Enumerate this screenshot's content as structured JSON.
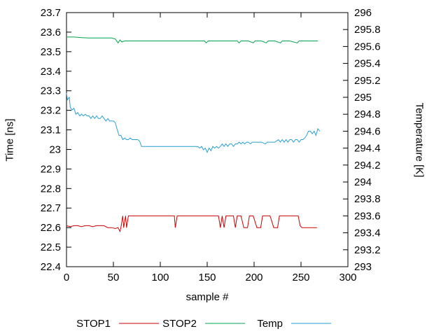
{
  "chart_data": {
    "type": "line",
    "title": "",
    "xlabel": "sample #",
    "ylabel": "Time [ns]",
    "y2label": "Temperature [K]",
    "grid": false,
    "legend_position": "bottom",
    "xlim": [
      0,
      300
    ],
    "ylim": [
      22.4,
      23.7
    ],
    "y2lim": [
      293,
      296
    ],
    "x_ticks": [
      "0",
      "50",
      "100",
      "150",
      "200",
      "250",
      "300"
    ],
    "y_ticks": [
      "22.4",
      "22.5",
      "22.6",
      "22.7",
      "22.8",
      "22.9",
      "23",
      "23.1",
      "23.2",
      "23.3",
      "23.4",
      "23.5",
      "23.6",
      "23.7"
    ],
    "y2_ticks": [
      "293",
      "293.2",
      "293.4",
      "293.6",
      "293.8",
      "294",
      "294.2",
      "294.4",
      "294.6",
      "294.8",
      "295",
      "295.2",
      "295.4",
      "295.6",
      "295.8",
      "296"
    ],
    "series": [
      {
        "name": "STOP1",
        "color": "#cc0000",
        "axis": "left",
        "points": [
          [
            0,
            22.61
          ],
          [
            4,
            22.605
          ],
          [
            8,
            22.61
          ],
          [
            12,
            22.61
          ],
          [
            16,
            22.605
          ],
          [
            20,
            22.61
          ],
          [
            24,
            22.61
          ],
          [
            28,
            22.605
          ],
          [
            32,
            22.61
          ],
          [
            36,
            22.61
          ],
          [
            40,
            22.61
          ],
          [
            44,
            22.6
          ],
          [
            48,
            22.6
          ],
          [
            52,
            22.595
          ],
          [
            55,
            22.6
          ],
          [
            57,
            22.58
          ],
          [
            58,
            22.6
          ],
          [
            60,
            22.66
          ],
          [
            61,
            22.6
          ],
          [
            63,
            22.66
          ],
          [
            64,
            22.6
          ],
          [
            66,
            22.66
          ],
          [
            70,
            22.66
          ],
          [
            75,
            22.66
          ],
          [
            80,
            22.66
          ],
          [
            85,
            22.66
          ],
          [
            90,
            22.66
          ],
          [
            95,
            22.66
          ],
          [
            100,
            22.66
          ],
          [
            105,
            22.66
          ],
          [
            110,
            22.66
          ],
          [
            115,
            22.66
          ],
          [
            116,
            22.6
          ],
          [
            118,
            22.66
          ],
          [
            122,
            22.66
          ],
          [
            128,
            22.66
          ],
          [
            134,
            22.66
          ],
          [
            140,
            22.66
          ],
          [
            146,
            22.66
          ],
          [
            152,
            22.66
          ],
          [
            158,
            22.66
          ],
          [
            162,
            22.66
          ],
          [
            164,
            22.6
          ],
          [
            166,
            22.66
          ],
          [
            168,
            22.6
          ],
          [
            170,
            22.66
          ],
          [
            174,
            22.66
          ],
          [
            178,
            22.66
          ],
          [
            180,
            22.6
          ],
          [
            182,
            22.66
          ],
          [
            186,
            22.66
          ],
          [
            189,
            22.6
          ],
          [
            193,
            22.6
          ],
          [
            195,
            22.66
          ],
          [
            199,
            22.66
          ],
          [
            203,
            22.6
          ],
          [
            207,
            22.6
          ],
          [
            209,
            22.66
          ],
          [
            213,
            22.66
          ],
          [
            217,
            22.66
          ],
          [
            221,
            22.6
          ],
          [
            225,
            22.6
          ],
          [
            227,
            22.66
          ],
          [
            231,
            22.66
          ],
          [
            235,
            22.66
          ],
          [
            239,
            22.66
          ],
          [
            243,
            22.66
          ],
          [
            247,
            22.66
          ],
          [
            249,
            22.61
          ],
          [
            251,
            22.6
          ],
          [
            255,
            22.6
          ],
          [
            259,
            22.6
          ],
          [
            263,
            22.6
          ],
          [
            267,
            22.6
          ]
        ]
      },
      {
        "name": "STOP2",
        "color": "#00a550",
        "axis": "left",
        "points": [
          [
            0,
            23.575
          ],
          [
            8,
            23.575
          ],
          [
            16,
            23.572
          ],
          [
            24,
            23.57
          ],
          [
            32,
            23.57
          ],
          [
            40,
            23.57
          ],
          [
            48,
            23.57
          ],
          [
            52,
            23.565
          ],
          [
            55,
            23.545
          ],
          [
            57,
            23.56
          ],
          [
            59,
            23.55
          ],
          [
            62,
            23.555
          ],
          [
            68,
            23.555
          ],
          [
            76,
            23.555
          ],
          [
            84,
            23.555
          ],
          [
            92,
            23.555
          ],
          [
            100,
            23.555
          ],
          [
            108,
            23.555
          ],
          [
            116,
            23.555
          ],
          [
            124,
            23.555
          ],
          [
            132,
            23.555
          ],
          [
            140,
            23.555
          ],
          [
            147,
            23.555
          ],
          [
            149,
            23.545
          ],
          [
            151,
            23.555
          ],
          [
            158,
            23.555
          ],
          [
            166,
            23.555
          ],
          [
            174,
            23.555
          ],
          [
            182,
            23.555
          ],
          [
            184,
            23.545
          ],
          [
            186,
            23.555
          ],
          [
            194,
            23.555
          ],
          [
            199,
            23.545
          ],
          [
            201,
            23.555
          ],
          [
            208,
            23.555
          ],
          [
            213,
            23.545
          ],
          [
            215,
            23.555
          ],
          [
            222,
            23.555
          ],
          [
            228,
            23.545
          ],
          [
            230,
            23.555
          ],
          [
            238,
            23.555
          ],
          [
            246,
            23.545
          ],
          [
            248,
            23.555
          ],
          [
            256,
            23.555
          ],
          [
            262,
            23.555
          ],
          [
            268,
            23.555
          ]
        ]
      },
      {
        "name": "Temp",
        "color": "#2a9fd4",
        "axis": "right",
        "points": [
          [
            0,
            295.05
          ],
          [
            1,
            294.97
          ],
          [
            3,
            295.0
          ],
          [
            4,
            294.88
          ],
          [
            6,
            294.85
          ],
          [
            8,
            294.87
          ],
          [
            10,
            294.8
          ],
          [
            12,
            294.82
          ],
          [
            14,
            294.78
          ],
          [
            16,
            294.8
          ],
          [
            18,
            294.78
          ],
          [
            20,
            294.8
          ],
          [
            22,
            294.78
          ],
          [
            24,
            294.78
          ],
          [
            26,
            294.75
          ],
          [
            28,
            294.78
          ],
          [
            30,
            294.75
          ],
          [
            32,
            294.78
          ],
          [
            34,
            294.75
          ],
          [
            36,
            294.75
          ],
          [
            38,
            294.78
          ],
          [
            40,
            294.75
          ],
          [
            42,
            294.72
          ],
          [
            44,
            294.75
          ],
          [
            46,
            294.72
          ],
          [
            48,
            294.72
          ],
          [
            50,
            294.72
          ],
          [
            52,
            294.7
          ],
          [
            54,
            294.62
          ],
          [
            56,
            294.55
          ],
          [
            58,
            294.55
          ],
          [
            60,
            294.5
          ],
          [
            62,
            294.52
          ],
          [
            64,
            294.5
          ],
          [
            66,
            294.5
          ],
          [
            68,
            294.52
          ],
          [
            70,
            294.5
          ],
          [
            72,
            294.5
          ],
          [
            74,
            294.5
          ],
          [
            76,
            294.5
          ],
          [
            78,
            294.48
          ],
          [
            80,
            294.42
          ],
          [
            84,
            294.42
          ],
          [
            88,
            294.42
          ],
          [
            92,
            294.42
          ],
          [
            96,
            294.42
          ],
          [
            100,
            294.42
          ],
          [
            104,
            294.42
          ],
          [
            108,
            294.42
          ],
          [
            112,
            294.42
          ],
          [
            116,
            294.42
          ],
          [
            120,
            294.42
          ],
          [
            124,
            294.42
          ],
          [
            128,
            294.42
          ],
          [
            132,
            294.42
          ],
          [
            136,
            294.42
          ],
          [
            140,
            294.42
          ],
          [
            142,
            294.4
          ],
          [
            144,
            294.42
          ],
          [
            146,
            294.38
          ],
          [
            148,
            294.4
          ],
          [
            150,
            294.35
          ],
          [
            152,
            294.4
          ],
          [
            154,
            294.37
          ],
          [
            156,
            294.42
          ],
          [
            158,
            294.4
          ],
          [
            160,
            294.42
          ],
          [
            162,
            294.4
          ],
          [
            164,
            294.42
          ],
          [
            166,
            294.45
          ],
          [
            168,
            294.42
          ],
          [
            170,
            294.45
          ],
          [
            172,
            294.42
          ],
          [
            174,
            294.45
          ],
          [
            176,
            294.45
          ],
          [
            178,
            294.42
          ],
          [
            180,
            294.45
          ],
          [
            182,
            294.45
          ],
          [
            184,
            294.47
          ],
          [
            186,
            294.45
          ],
          [
            188,
            294.47
          ],
          [
            190,
            294.45
          ],
          [
            192,
            294.47
          ],
          [
            194,
            294.47
          ],
          [
            196,
            294.45
          ],
          [
            198,
            294.47
          ],
          [
            200,
            294.47
          ],
          [
            204,
            294.47
          ],
          [
            208,
            294.47
          ],
          [
            212,
            294.45
          ],
          [
            214,
            294.47
          ],
          [
            218,
            294.47
          ],
          [
            222,
            294.47
          ],
          [
            226,
            294.5
          ],
          [
            228,
            294.47
          ],
          [
            230,
            294.5
          ],
          [
            232,
            294.47
          ],
          [
            234,
            294.5
          ],
          [
            236,
            294.47
          ],
          [
            238,
            294.5
          ],
          [
            240,
            294.5
          ],
          [
            242,
            294.47
          ],
          [
            244,
            294.5
          ],
          [
            246,
            294.5
          ],
          [
            248,
            294.47
          ],
          [
            250,
            294.5
          ],
          [
            252,
            294.5
          ],
          [
            254,
            294.52
          ],
          [
            256,
            294.55
          ],
          [
            258,
            294.6
          ],
          [
            260,
            294.6
          ],
          [
            262,
            294.57
          ],
          [
            264,
            294.6
          ],
          [
            266,
            294.55
          ],
          [
            268,
            294.63
          ],
          [
            270,
            294.6
          ]
        ]
      }
    ]
  }
}
